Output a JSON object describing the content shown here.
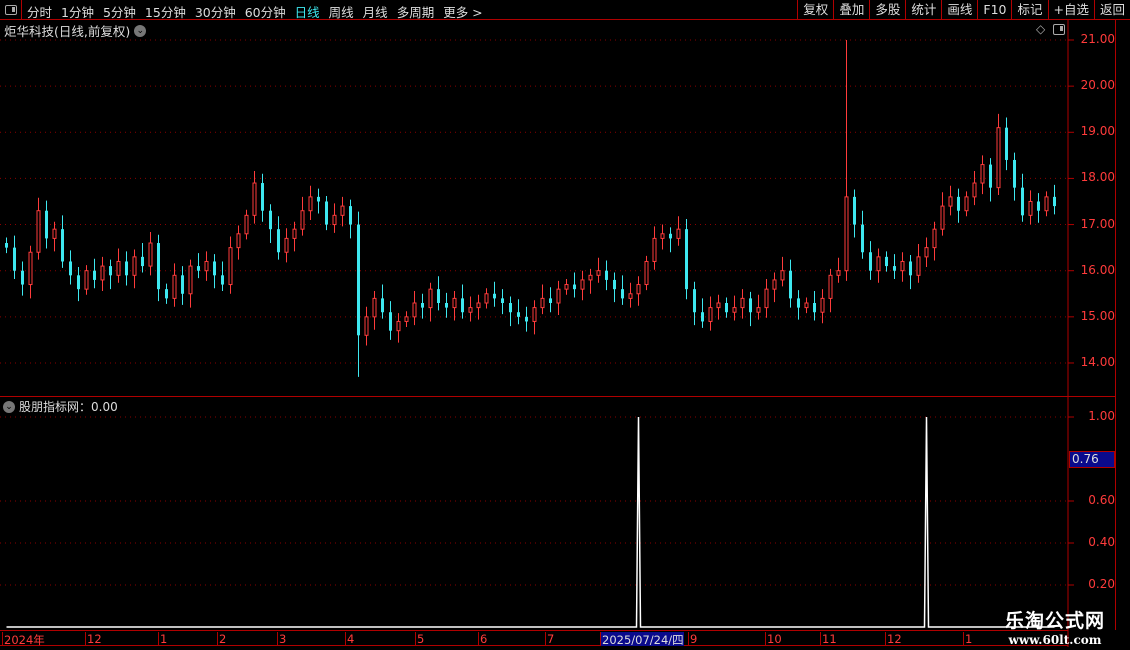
{
  "toolbar": {
    "periods": [
      "分时",
      "1分钟",
      "5分钟",
      "15分钟",
      "30分钟",
      "60分钟",
      "日线",
      "周线",
      "月线",
      "多周期",
      "更多 >"
    ],
    "active_period": "日线",
    "right_buttons": [
      "复权",
      "叠加",
      "多股",
      "统计",
      "画线",
      "F10",
      "标记",
      "+自选",
      "返回"
    ]
  },
  "main": {
    "title": "炬华科技(日线,前复权)",
    "y_ticks": [
      "21.00",
      "20.00",
      "19.00",
      "18.00",
      "17.00",
      "16.00",
      "15.00",
      "14.00"
    ]
  },
  "indicator": {
    "title": "股朋指标网：0.00",
    "y_ticks": [
      "1.00",
      "0.60",
      "0.40",
      "0.20"
    ],
    "crosshair_value": "0.76"
  },
  "date_axis": [
    "2024年",
    "12",
    "1",
    "2",
    "3",
    "4",
    "5",
    "6",
    "7",
    "2025/07/24/四",
    "9",
    "10",
    "11",
    "12",
    "1"
  ],
  "selected_date": "2025/07/24/四",
  "watermark": {
    "name": "乐淘公式网",
    "url": "www.60lt.com"
  },
  "colors": {
    "up": "#ff3b3b",
    "down": "#3ee8f0",
    "axis": "#b00000",
    "indicator": "#ffffff"
  },
  "chart_data": [
    {
      "type": "candlestick",
      "ylim": [
        13.6,
        21.2
      ],
      "closes": [
        16.5,
        16.0,
        15.7,
        16.4,
        17.3,
        16.7,
        16.9,
        16.2,
        15.9,
        15.6,
        16.0,
        15.8,
        16.1,
        15.9,
        16.2,
        15.9,
        16.3,
        16.1,
        16.6,
        15.6,
        15.4,
        15.9,
        15.5,
        16.1,
        16.0,
        16.2,
        15.9,
        15.7,
        16.5,
        16.8,
        17.2,
        17.9,
        17.3,
        16.9,
        16.4,
        16.7,
        16.9,
        17.3,
        17.6,
        17.5,
        17.0,
        17.2,
        17.4,
        17.0,
        14.6,
        15.0,
        15.4,
        15.1,
        14.7,
        14.9,
        15.0,
        15.3,
        15.2,
        15.6,
        15.3,
        15.2,
        15.4,
        15.1,
        15.2,
        15.3,
        15.5,
        15.4,
        15.3,
        15.1,
        15.0,
        14.9,
        15.2,
        15.4,
        15.3,
        15.6,
        15.7,
        15.6,
        15.8,
        15.9,
        16.0,
        15.8,
        15.6,
        15.4,
        15.5,
        15.7,
        16.2,
        16.7,
        16.8,
        16.7,
        16.9,
        15.6,
        15.1,
        14.9,
        15.2,
        15.3,
        15.1,
        15.2,
        15.4,
        15.1,
        15.2,
        15.6,
        15.8,
        16.0,
        15.4,
        15.2,
        15.3,
        15.1,
        15.4,
        15.9,
        16.0,
        17.6,
        17.0,
        16.4,
        16.0,
        16.3,
        16.1,
        16.0,
        16.2,
        15.9,
        16.3,
        16.5,
        16.9,
        17.4,
        17.6,
        17.3,
        17.6,
        17.9,
        18.3,
        17.8,
        19.1,
        18.4,
        17.8,
        17.2,
        17.5,
        17.3,
        17.6,
        17.4
      ],
      "extremes": [
        {
          "index": 44,
          "low": 13.7
        },
        {
          "index": 105,
          "high": 21.0
        },
        {
          "index": 124,
          "high": 19.4
        }
      ]
    },
    {
      "type": "line",
      "name": "股朋指标网",
      "ylim": [
        0,
        1.0
      ],
      "spikes": [
        {
          "index": 79,
          "value": 1.0
        },
        {
          "index": 115,
          "value": 1.0
        }
      ]
    }
  ]
}
